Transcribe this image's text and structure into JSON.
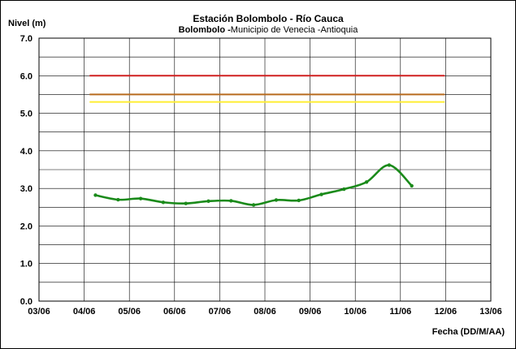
{
  "chart_data": {
    "type": "line",
    "title": "Estación Bolombolo - Río Cauca",
    "subtitle_bold": "Bolombolo -",
    "subtitle_rest": "Municipio de Venecia -Antioquia",
    "ylabel": "Nivel (m)",
    "xlabel": "Fecha (DD/M/AA)",
    "ylim": [
      0,
      7
    ],
    "yticks": [
      "0.0",
      "1.0",
      "2.0",
      "3.0",
      "4.0",
      "5.0",
      "6.0",
      "7.0"
    ],
    "xticks": [
      "03/06",
      "04/06",
      "05/06",
      "06/06",
      "07/06",
      "08/06",
      "09/06",
      "10/06",
      "11/06",
      "12/06",
      "13/06"
    ],
    "grid": true,
    "series": [
      {
        "color": "#1a8a1a",
        "x": [
          4.25,
          4.75,
          5.25,
          5.75,
          6.25,
          6.75,
          7.25,
          7.75,
          8.25,
          8.75,
          9.25,
          9.75,
          10.25,
          10.75,
          11.25
        ],
        "y": [
          2.82,
          2.7,
          2.73,
          2.63,
          2.6,
          2.66,
          2.67,
          2.56,
          2.69,
          2.68,
          2.84,
          2.98,
          3.17,
          3.62,
          3.07
        ]
      }
    ],
    "reference_lines": [
      {
        "y": 6.0,
        "color": "#d02020",
        "x_from": 4.12,
        "x_to": 11.98
      },
      {
        "y": 5.5,
        "color": "#b86a1e",
        "x_from": 4.12,
        "x_to": 11.98
      },
      {
        "y": 5.3,
        "color": "#ffee33",
        "x_from": 4.12,
        "x_to": 11.98
      }
    ]
  }
}
